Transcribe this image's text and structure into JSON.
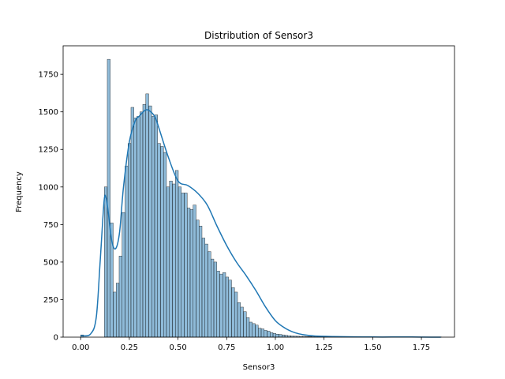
{
  "chart_data": {
    "type": "bar",
    "subtype": "histogram-with-kde",
    "title": "Distribution of Sensor3",
    "xlabel": "Sensor3",
    "ylabel": "Frequency",
    "xlim": [
      -0.09,
      1.92
    ],
    "ylim": [
      0,
      1940
    ],
    "xticks": [
      0.0,
      0.25,
      0.5,
      0.75,
      1.0,
      1.25,
      1.5,
      1.75
    ],
    "xtick_labels": [
      "0.00",
      "0.25",
      "0.50",
      "0.75",
      "1.00",
      "1.25",
      "1.50",
      "1.75"
    ],
    "yticks": [
      0,
      250,
      500,
      750,
      1000,
      1250,
      1500,
      1750
    ],
    "ytick_labels": [
      "0",
      "250",
      "500",
      "750",
      "1000",
      "1250",
      "1500",
      "1750"
    ],
    "bin_start": 0.0,
    "bin_width": 0.0152,
    "counts": [
      15,
      0,
      0,
      0,
      0,
      0,
      0,
      0,
      1000,
      1850,
      760,
      300,
      360,
      540,
      830,
      1140,
      1290,
      1530,
      1460,
      1470,
      1500,
      1550,
      1620,
      1540,
      1470,
      1480,
      1290,
      1270,
      1230,
      1000,
      1040,
      1020,
      1110,
      1000,
      960,
      960,
      860,
      850,
      880,
      780,
      740,
      660,
      620,
      570,
      520,
      500,
      440,
      420,
      430,
      400,
      380,
      330,
      300,
      230,
      200,
      170,
      130,
      100,
      90,
      80,
      60,
      55,
      45,
      40,
      30,
      25,
      20,
      18,
      15,
      12,
      10,
      8,
      7,
      6,
      5,
      5,
      4,
      4,
      3,
      3,
      3,
      2,
      2,
      2,
      2,
      1,
      1,
      1,
      1,
      1,
      1,
      1,
      1,
      1,
      1,
      1,
      1,
      1,
      1,
      1,
      1,
      1,
      1,
      1,
      1,
      1,
      1,
      1,
      1,
      1,
      1,
      1,
      1,
      1,
      1,
      1,
      1,
      1,
      1,
      1,
      1,
      1
    ],
    "kde": {
      "x": [
        0.0,
        0.05,
        0.08,
        0.1,
        0.12,
        0.13,
        0.14,
        0.16,
        0.18,
        0.2,
        0.22,
        0.25,
        0.28,
        0.3,
        0.33,
        0.35,
        0.38,
        0.4,
        0.45,
        0.5,
        0.55,
        0.6,
        0.65,
        0.7,
        0.75,
        0.8,
        0.85,
        0.9,
        0.95,
        1.0,
        1.05,
        1.1,
        1.15,
        1.2,
        1.3,
        1.4,
        1.5,
        1.6,
        1.7,
        1.8,
        1.85
      ],
      "y": [
        10,
        20,
        130,
        500,
        900,
        930,
        850,
        640,
        590,
        700,
        1000,
        1300,
        1440,
        1470,
        1510,
        1510,
        1470,
        1400,
        1200,
        1040,
        1010,
        960,
        880,
        740,
        610,
        500,
        410,
        310,
        200,
        110,
        60,
        30,
        15,
        8,
        4,
        2,
        1,
        1,
        1,
        0,
        0
      ]
    },
    "bar_color": "#1f77b4",
    "bar_fill_opacity": 0.5,
    "kde_color": "#1f77b4",
    "grid": false,
    "legend": "none"
  }
}
